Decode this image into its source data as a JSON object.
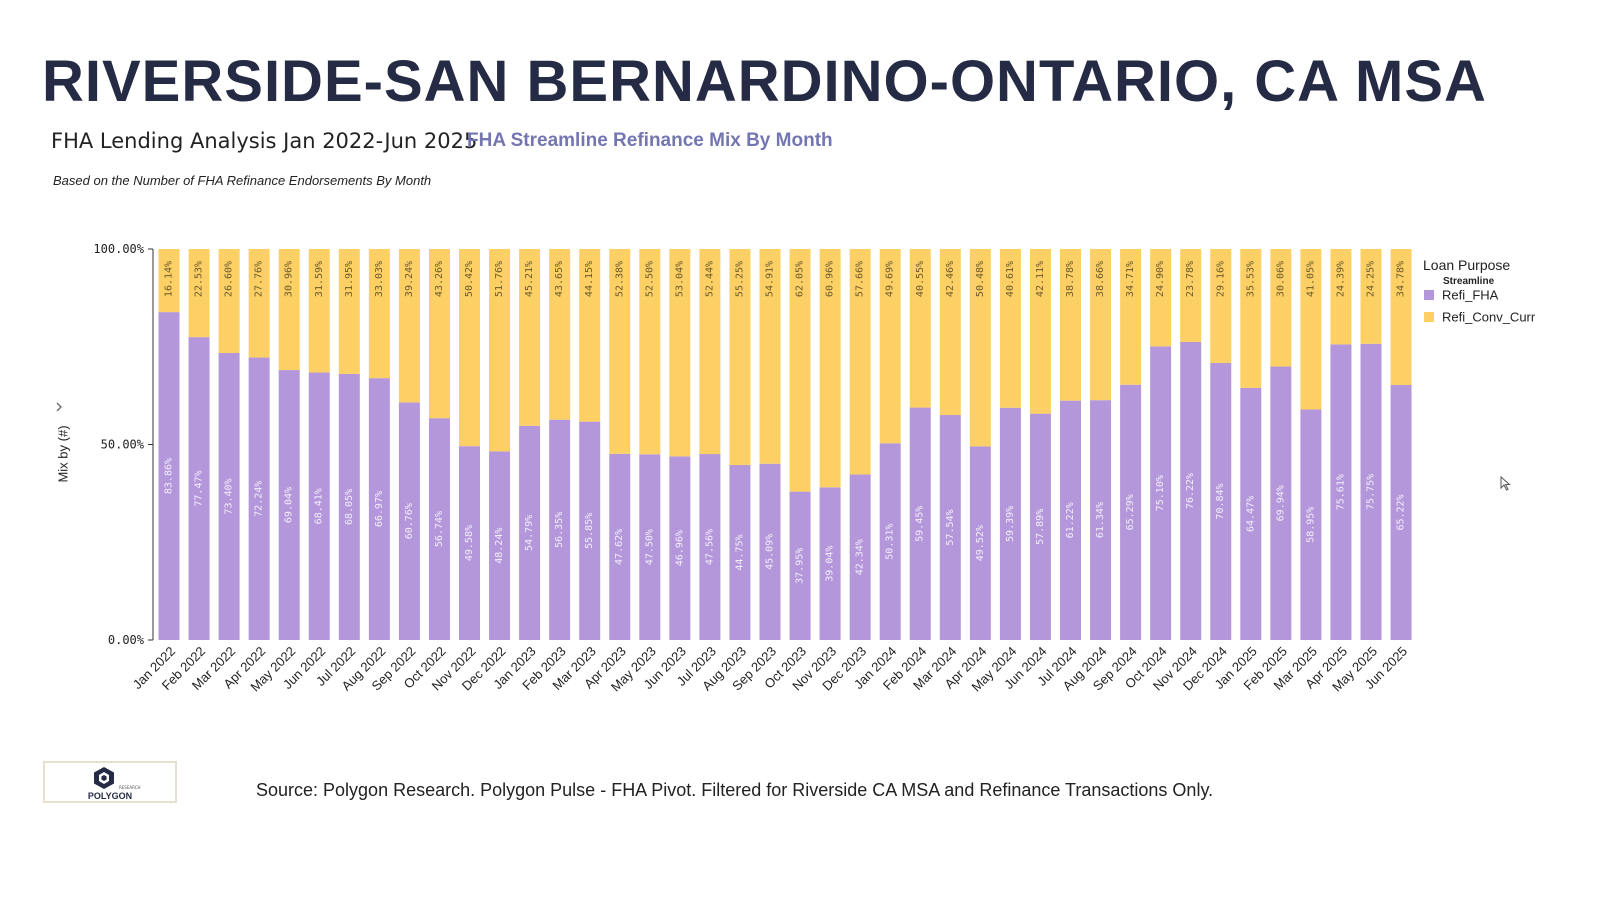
{
  "header": {
    "title": "RIVERSIDE-SAN BERNARDINO-ONTARIO, CA MSA",
    "subtitle": "FHA Lending Analysis Jan 2022-Jun 2025",
    "chart_title": "FHA Streamline Refinance Mix By Month",
    "note": "Based on the Number of FHA Refinance Endorsements By Month"
  },
  "footer": {
    "source": "Source: Polygon Research. Polygon Pulse - FHA Pivot. Filtered for Riverside CA MSA and Refinance Transactions Only.",
    "logo_text": "POLYGON",
    "logo_subtext": "RESEARCH"
  },
  "colors": {
    "title": "#262b45",
    "chart_title": "#7376b0",
    "refi_fha": "#b497da",
    "refi_conv_curr": "#fdd066"
  },
  "icons": {
    "logo": "polygon-logo-icon",
    "cursor": "mouse-pointer-icon",
    "axis_menu": "chevron-right-icon"
  },
  "chart_data": {
    "type": "bar",
    "stacked": true,
    "normalized": true,
    "categories": [
      "Jan 2022",
      "Feb 2022",
      "Mar 2022",
      "Apr 2022",
      "May 2022",
      "Jun 2022",
      "Jul 2022",
      "Aug 2022",
      "Sep 2022",
      "Oct 2022",
      "Nov 2022",
      "Dec 2022",
      "Jan 2023",
      "Feb 2023",
      "Mar 2023",
      "Apr 2023",
      "May 2023",
      "Jun 2023",
      "Jul 2023",
      "Aug 2023",
      "Sep 2023",
      "Oct 2023",
      "Nov 2023",
      "Dec 2023",
      "Jan 2024",
      "Feb 2024",
      "Mar 2024",
      "Apr 2024",
      "May 2024",
      "Jun 2024",
      "Jul 2024",
      "Aug 2024",
      "Sep 2024",
      "Oct 2024",
      "Nov 2024",
      "Dec 2024",
      "Jan 2025",
      "Feb 2025",
      "Mar 2025",
      "Apr 2025",
      "May 2025",
      "Jun 2025"
    ],
    "series": [
      {
        "name": "Refi_FHA",
        "color": "#b497da",
        "values": [
          83.86,
          77.47,
          73.4,
          72.24,
          69.04,
          68.41,
          68.05,
          66.97,
          60.76,
          56.74,
          49.58,
          48.24,
          54.79,
          56.35,
          55.85,
          47.62,
          47.5,
          46.96,
          47.56,
          44.75,
          45.09,
          37.95,
          39.04,
          42.34,
          50.31,
          59.45,
          57.54,
          49.52,
          59.39,
          57.89,
          61.22,
          61.34,
          65.29,
          75.1,
          76.22,
          70.84,
          64.47,
          69.94,
          58.95,
          75.61,
          75.75,
          65.22
        ],
        "labels": [
          "83.86%",
          "77.47%",
          "73.40%",
          "72.24%",
          "69.04%",
          "68.41%",
          "68.05%",
          "66.97%",
          "60.76%",
          "56.74%",
          "49.58%",
          "48.24%",
          "54.79%",
          "56.35%",
          "55.85%",
          "47.62%",
          "47.50%",
          "46.96%",
          "47.56%",
          "44.75%",
          "45.09%",
          "37.95%",
          "39.04%",
          "42.34%",
          "50.31%",
          "59.45%",
          "57.54%",
          "49.52%",
          "59.39%",
          "57.89%",
          "61.22%",
          "61.34%",
          "65.29%",
          "75.10%",
          "76.22%",
          "70.84%",
          "64.47%",
          "69.94%",
          "58.95%",
          "75.61%",
          "75.75%",
          "65.22%"
        ]
      },
      {
        "name": "Refi_Conv_Curr",
        "color": "#fdd066",
        "values": [
          16.14,
          22.53,
          26.6,
          27.76,
          30.96,
          31.59,
          31.95,
          33.03,
          39.24,
          43.26,
          50.42,
          51.76,
          45.21,
          43.65,
          44.15,
          52.38,
          52.5,
          53.04,
          52.44,
          55.25,
          54.91,
          62.05,
          60.96,
          57.66,
          49.69,
          40.55,
          42.46,
          50.48,
          40.61,
          42.11,
          38.78,
          38.66,
          34.71,
          24.9,
          23.78,
          29.16,
          35.53,
          30.06,
          41.05,
          24.39,
          24.25,
          34.78
        ],
        "labels": [
          "16.14%",
          "22.53%",
          "26.60%",
          "27.76%",
          "30.96%",
          "31.59%",
          "31.95%",
          "33.03%",
          "39.24%",
          "43.26%",
          "50.42%",
          "51.76%",
          "45.21%",
          "43.65%",
          "44.15%",
          "52.38%",
          "52.50%",
          "53.04%",
          "52.44%",
          "55.25%",
          "54.91%",
          "62.05%",
          "60.96%",
          "57.66%",
          "49.69%",
          "40.55%",
          "42.46%",
          "50.48%",
          "40.61%",
          "42.11%",
          "38.78%",
          "38.66%",
          "34.71%",
          "24.90%",
          "23.78%",
          "29.16%",
          "35.53%",
          "30.06%",
          "41.05%",
          "24.39%",
          "24.25%",
          "34.78%"
        ]
      }
    ],
    "ylabel": "Mix by (#)",
    "ylim": [
      0,
      100
    ],
    "yticks": [
      "0.00%",
      "50.00%",
      "100.00%"
    ],
    "grid": false,
    "legend": {
      "title": "Loan Purpose",
      "subtitle": "Streamline",
      "position": "right",
      "entries": [
        "Refi_FHA",
        "Refi_Conv_Curr"
      ]
    }
  }
}
